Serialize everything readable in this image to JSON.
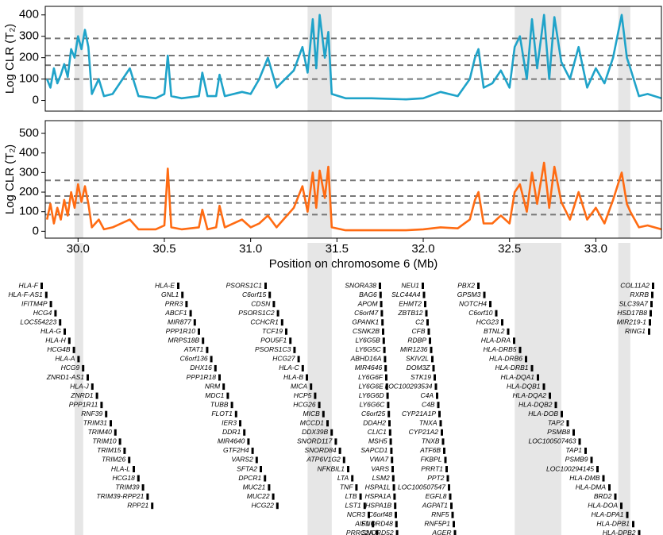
{
  "chart_data": [
    {
      "type": "line",
      "ylabel": "Log CLR (T₂)",
      "xlim": [
        29.81,
        33.38
      ],
      "ylim": [
        -50,
        440
      ],
      "yticks": [
        0,
        100,
        200,
        300,
        400
      ],
      "hlines": [
        290,
        210,
        165,
        100
      ],
      "highlights": [
        [
          29.98,
          30.03
        ],
        [
          31.33,
          31.47
        ],
        [
          32.53,
          32.8
        ],
        [
          33.13,
          33.2
        ]
      ],
      "series": [
        {
          "color": "#1fa3c9",
          "x": [
            29.82,
            29.84,
            29.86,
            29.88,
            29.9,
            29.92,
            29.94,
            29.96,
            29.98,
            30.0,
            30.02,
            30.04,
            30.06,
            30.08,
            30.12,
            30.15,
            30.2,
            30.3,
            30.35,
            30.45,
            30.5,
            30.52,
            30.54,
            30.6,
            30.7,
            30.72,
            30.75,
            30.8,
            30.82,
            30.85,
            30.95,
            31.0,
            31.05,
            31.1,
            31.15,
            31.2,
            31.25,
            31.3,
            31.33,
            31.36,
            31.38,
            31.4,
            31.43,
            31.45,
            31.47,
            31.55,
            31.7,
            31.9,
            32.0,
            32.1,
            32.2,
            32.27,
            32.3,
            32.32,
            32.35,
            32.4,
            32.45,
            32.5,
            32.53,
            32.56,
            32.6,
            32.63,
            32.66,
            32.7,
            32.73,
            32.76,
            32.8,
            32.85,
            32.9,
            32.95,
            33.0,
            33.05,
            33.1,
            33.15,
            33.18,
            33.2,
            33.25,
            33.3,
            33.38
          ],
          "values": [
            100,
            60,
            150,
            80,
            120,
            170,
            110,
            240,
            200,
            300,
            240,
            330,
            250,
            30,
            100,
            20,
            30,
            150,
            20,
            10,
            30,
            210,
            20,
            10,
            20,
            130,
            20,
            20,
            120,
            20,
            40,
            30,
            100,
            200,
            60,
            100,
            140,
            250,
            130,
            380,
            150,
            400,
            200,
            320,
            30,
            10,
            10,
            5,
            10,
            40,
            20,
            100,
            200,
            240,
            60,
            80,
            140,
            60,
            250,
            300,
            100,
            380,
            150,
            400,
            100,
            390,
            180,
            100,
            250,
            60,
            150,
            80,
            200,
            400,
            200,
            150,
            20,
            30,
            10
          ]
        }
      ]
    },
    {
      "type": "line",
      "ylabel": "Log CLR (T₂)",
      "xlabel": "Position on chromosome 6 (Mb)",
      "xlim": [
        29.81,
        33.38
      ],
      "ylim": [
        -35,
        565
      ],
      "yticks": [
        0,
        100,
        200,
        300,
        400,
        500
      ],
      "xticks": [
        {
          "value": 30,
          "label": "30.0"
        },
        {
          "value": 30.5,
          "label": "30.5"
        },
        {
          "value": 31,
          "label": "31.0"
        },
        {
          "value": 31.5,
          "label": "31.5"
        },
        {
          "value": 32,
          "label": "32.0"
        },
        {
          "value": 32.5,
          "label": "32.5"
        },
        {
          "value": 33,
          "label": "33.0"
        }
      ],
      "hlines": [
        260,
        180,
        145,
        85
      ],
      "highlights": [
        [
          29.98,
          30.03
        ],
        [
          31.33,
          31.47
        ],
        [
          32.53,
          32.8
        ],
        [
          33.13,
          33.2
        ]
      ],
      "series": [
        {
          "color": "#ff6b12",
          "x": [
            29.82,
            29.84,
            29.86,
            29.88,
            29.9,
            29.92,
            29.94,
            29.96,
            29.98,
            30.0,
            30.02,
            30.04,
            30.06,
            30.08,
            30.12,
            30.15,
            30.2,
            30.3,
            30.35,
            30.45,
            30.5,
            30.52,
            30.54,
            30.6,
            30.7,
            30.72,
            30.75,
            30.8,
            30.82,
            30.85,
            30.95,
            31.0,
            31.05,
            31.1,
            31.15,
            31.2,
            31.25,
            31.3,
            31.33,
            31.36,
            31.38,
            31.4,
            31.43,
            31.45,
            31.47,
            31.55,
            31.7,
            31.9,
            32.0,
            32.1,
            32.2,
            32.27,
            32.3,
            32.32,
            32.35,
            32.4,
            32.45,
            32.5,
            32.53,
            32.56,
            32.6,
            32.63,
            32.66,
            32.7,
            32.73,
            32.76,
            32.8,
            32.85,
            32.9,
            32.95,
            33.0,
            33.05,
            33.1,
            33.15,
            33.18,
            33.2,
            33.25,
            33.3,
            33.38
          ],
          "values": [
            60,
            140,
            40,
            120,
            60,
            160,
            80,
            200,
            120,
            240,
            150,
            230,
            140,
            20,
            60,
            10,
            20,
            60,
            10,
            10,
            30,
            320,
            20,
            10,
            20,
            110,
            10,
            20,
            130,
            20,
            60,
            20,
            40,
            80,
            20,
            70,
            120,
            230,
            100,
            300,
            120,
            310,
            170,
            330,
            20,
            5,
            5,
            5,
            10,
            20,
            15,
            60,
            160,
            200,
            40,
            40,
            80,
            40,
            200,
            240,
            100,
            300,
            140,
            350,
            120,
            330,
            150,
            60,
            200,
            60,
            120,
            40,
            160,
            300,
            140,
            100,
            20,
            30,
            10
          ]
        }
      ]
    }
  ],
  "genes": {
    "columns": [
      [
        "HLA-F",
        "HLA-F-AS1",
        "IFITM4P",
        "HCG4",
        "LOC554223",
        "HLA-G",
        "HLA-H",
        "HCG4B",
        "HLA-A",
        "HCG9",
        "ZNRD1-AS1",
        "HLA-J",
        "ZNRD1",
        "PPP1R11",
        "RNF39",
        "TRIM31",
        "TRIM40",
        "TRIM10",
        "TRIM15",
        "TRIM26",
        "HLA-L",
        "HCG18",
        "TRIM39",
        "TRIM39-RPP21",
        "RPP21"
      ],
      [
        "HLA-E",
        "GNL1",
        "PRR3",
        "ABCF1",
        "MIR877",
        "PPP1R10",
        "MRPS18B",
        "ATAT1",
        "C6orf136",
        "DHX16",
        "PPP1R18",
        "NRM",
        "MDC1",
        "TUBB",
        "FLOT1",
        "IER3",
        "DDR1",
        "MIR4640",
        "GTF2H4",
        "VARS2",
        "SFTA2",
        "DPCR1",
        "MUC21",
        "MUC22",
        "HCG22"
      ],
      [
        "PSORS1C1",
        "C6orf15",
        "CDSN",
        "PSORS1C2",
        "CCHCR1",
        "TCF19",
        "POU5F1",
        "PSORS1C3",
        "HCG27",
        "HLA-C",
        "HLA-B",
        "MICA",
        "HCP5",
        "HCG26",
        "MICB",
        "MCCD1",
        "DDX39B",
        "SNORD117",
        "SNORD84",
        "ATP6V1G2",
        "NFKBIL1",
        "LTA",
        "TNF",
        "LTB",
        "LST1",
        "NCR3",
        "AIF1",
        "PRRC2A"
      ],
      [
        "SNORA38",
        "BAG6",
        "APOM",
        "C6orf47",
        "GPANK1",
        "CSNK2B",
        "LY6G5B",
        "LY6G5C",
        "ABHD16A",
        "MIR4646",
        "LY6G6F",
        "LY6G6E",
        "LY6G6D",
        "LY6G6C",
        "C6orf25",
        "DDAH2",
        "CLIC1",
        "MSH5",
        "SAPCD1",
        "VWA7",
        "VARS",
        "LSM2",
        "HSPA1L",
        "HSPA1A",
        "HSPA1B",
        "C6orf48",
        "SNORD48",
        "SNORD52"
      ],
      [
        "NEU1",
        "SLC44A4",
        "EHMT2",
        "ZBTB12",
        "C2",
        "CFB",
        "RDBP",
        "MIR1236",
        "SKIV2L",
        "DOM3Z",
        "STK19",
        "LOC100293534",
        "C4A",
        "C4B",
        "CYP21A1P",
        "TNXA",
        "CYP21A2",
        "TNXB",
        "ATF6B",
        "FKBPL",
        "PRRT1",
        "PPT2",
        "LOC100507547",
        "EGFL8",
        "AGPAT1",
        "RNF5",
        "RNF5P1",
        "AGER"
      ],
      [
        "PBX2",
        "GPSM3",
        "NOTCH4",
        "C6orf10",
        "HCG23",
        "BTNL2",
        "HLA-DRA",
        "HLA-DRB5",
        "HLA-DRB6",
        "HLA-DRB1",
        "HLA-DQA1",
        "HLA-DQB1",
        "HLA-DQA2",
        "HLA-DQB2",
        "HLA-DOB",
        "TAP2",
        "PSMB8",
        "LOC100507463",
        "TAP1",
        "PSMB9",
        "LOC100294145",
        "HLA-DMB",
        "HLA-DMA",
        "BRD2",
        "HLA-DOA",
        "HLA-DPA1",
        "HLA-DPB1",
        "HLA-DPB2"
      ],
      [
        "COL11A2",
        "RXRB",
        "SLC39A7",
        "HSD17B8",
        "MIR219-1",
        "RING1"
      ]
    ]
  }
}
